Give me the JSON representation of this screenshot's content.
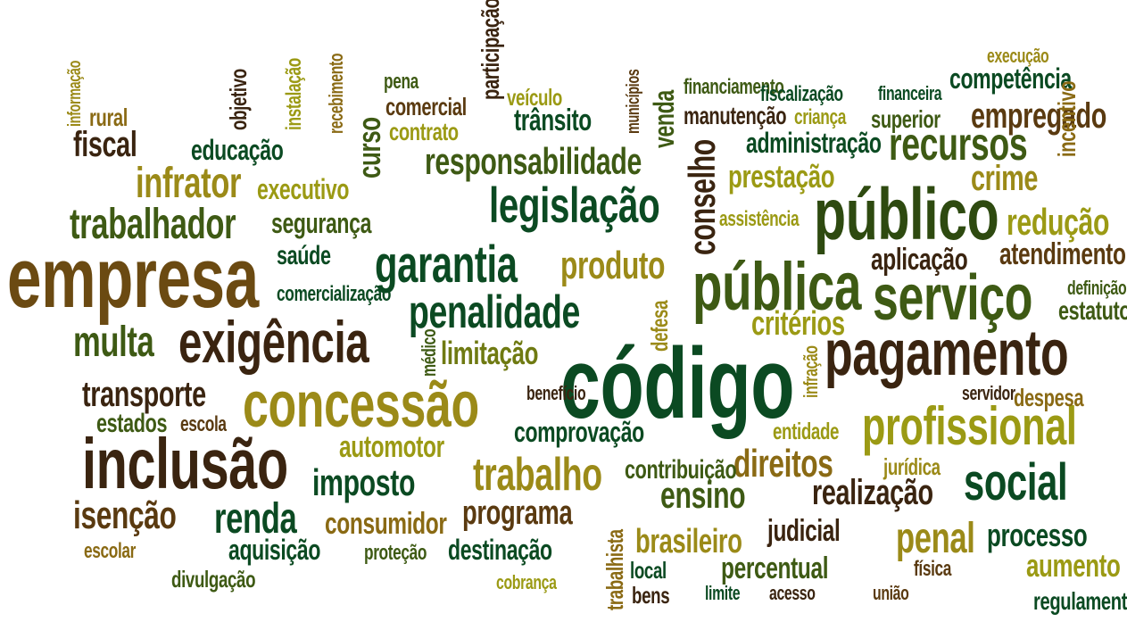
{
  "palette": {
    "dark_green": "#0b4a22",
    "mid_green": "#3e5a14",
    "olive": "#6f7a12",
    "gold": "#9b8a18",
    "brown": "#5a3a10",
    "dark_brown": "#3a2410"
  },
  "words": [
    {
      "text": "código"
    },
    {
      "text": "empresa"
    },
    {
      "text": "público"
    },
    {
      "text": "pública"
    },
    {
      "text": "serviço"
    },
    {
      "text": "pagamento"
    },
    {
      "text": "concessão"
    },
    {
      "text": "inclusão"
    },
    {
      "text": "exigência"
    },
    {
      "text": "profissional"
    },
    {
      "text": "garantia"
    },
    {
      "text": "legislação"
    },
    {
      "text": "penalidade"
    },
    {
      "text": "recursos"
    },
    {
      "text": "social"
    },
    {
      "text": "trabalhador"
    },
    {
      "text": "infrator"
    },
    {
      "text": "responsabilidade"
    },
    {
      "text": "multa"
    },
    {
      "text": "renda"
    },
    {
      "text": "isenção"
    },
    {
      "text": "trabalho"
    },
    {
      "text": "direitos"
    },
    {
      "text": "ensino"
    },
    {
      "text": "realização"
    },
    {
      "text": "penal"
    },
    {
      "text": "imposto"
    },
    {
      "text": "programa"
    },
    {
      "text": "transporte"
    },
    {
      "text": "produto"
    },
    {
      "text": "redução"
    },
    {
      "text": "crime"
    },
    {
      "text": "empregado"
    },
    {
      "text": "fiscal"
    },
    {
      "text": "limitação"
    },
    {
      "text": "critérios"
    },
    {
      "text": "brasileiro"
    },
    {
      "text": "processo"
    },
    {
      "text": "aumento"
    },
    {
      "text": "percentual"
    },
    {
      "text": "judicial"
    },
    {
      "text": "consumidor"
    },
    {
      "text": "aquisição"
    },
    {
      "text": "destinação"
    },
    {
      "text": "automotor"
    },
    {
      "text": "atendimento"
    },
    {
      "text": "aplicação"
    },
    {
      "text": "prestação"
    },
    {
      "text": "trânsito"
    },
    {
      "text": "segurança"
    },
    {
      "text": "educação"
    },
    {
      "text": "executivo"
    },
    {
      "text": "administração"
    },
    {
      "text": "competência"
    },
    {
      "text": "comprovação"
    },
    {
      "text": "contribuição"
    },
    {
      "text": "estatuto"
    },
    {
      "text": "regulamentação"
    },
    {
      "text": "saúde"
    },
    {
      "text": "estados"
    },
    {
      "text": "rural"
    },
    {
      "text": "comercial"
    },
    {
      "text": "contrato"
    },
    {
      "text": "pena"
    },
    {
      "text": "veículo"
    },
    {
      "text": "financiamento"
    },
    {
      "text": "manutenção"
    },
    {
      "text": "fiscalização"
    },
    {
      "text": "criança"
    },
    {
      "text": "financeira"
    },
    {
      "text": "superior"
    },
    {
      "text": "execução"
    },
    {
      "text": "assistência"
    },
    {
      "text": "comercialização"
    },
    {
      "text": "escola"
    },
    {
      "text": "benefício"
    },
    {
      "text": "servidor"
    },
    {
      "text": "despesa"
    },
    {
      "text": "entidade"
    },
    {
      "text": "jurídica"
    },
    {
      "text": "definição"
    },
    {
      "text": "escolar"
    },
    {
      "text": "proteção"
    },
    {
      "text": "divulgação"
    },
    {
      "text": "cobrança"
    },
    {
      "text": "local"
    },
    {
      "text": "física"
    },
    {
      "text": "bens"
    },
    {
      "text": "limite"
    },
    {
      "text": "acesso"
    },
    {
      "text": "união"
    },
    {
      "text": "conselho"
    },
    {
      "text": "curso"
    },
    {
      "text": "venda"
    },
    {
      "text": "participação"
    },
    {
      "text": "objetivo"
    },
    {
      "text": "instalação"
    },
    {
      "text": "recebimento"
    },
    {
      "text": "municípios"
    },
    {
      "text": "incentivo"
    },
    {
      "text": "informação"
    },
    {
      "text": "defesa"
    },
    {
      "text": "médico"
    },
    {
      "text": "infração"
    },
    {
      "text": "trabalhista"
    }
  ]
}
